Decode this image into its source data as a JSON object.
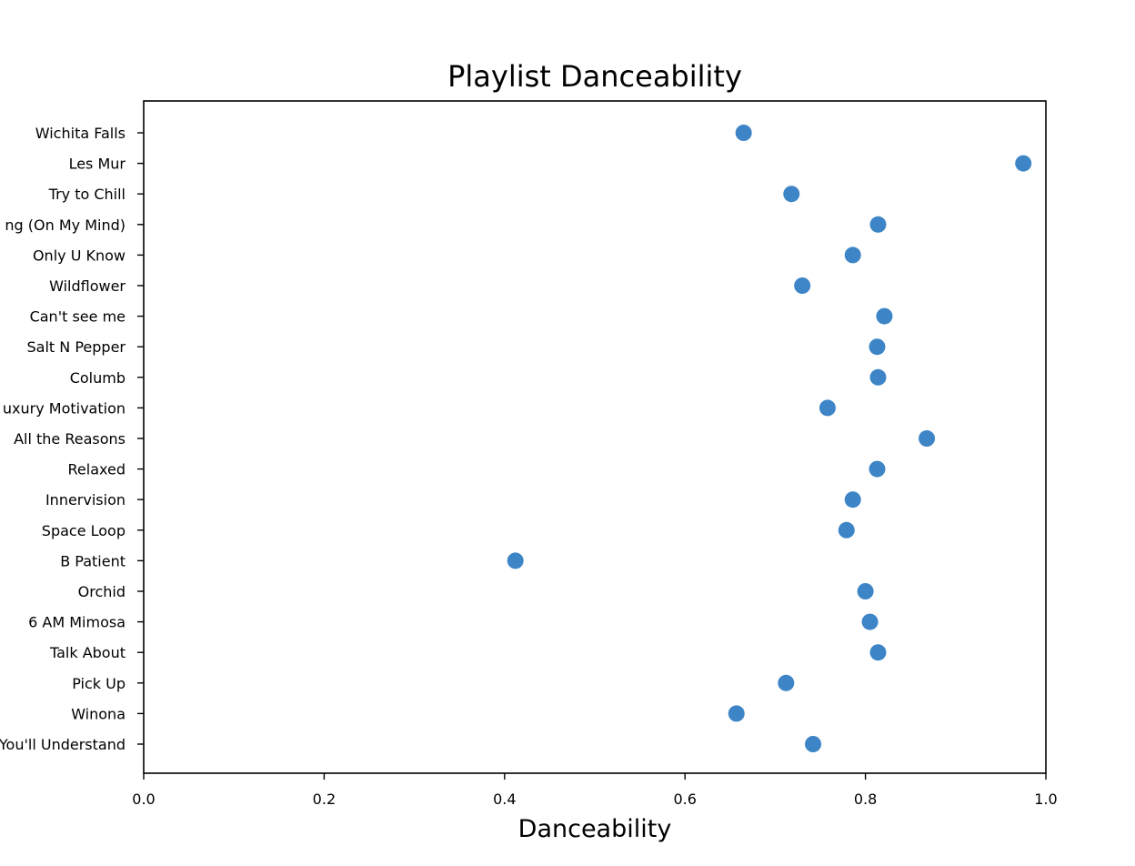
{
  "chart_data": {
    "type": "scatter",
    "title": "Playlist Danceability",
    "xlabel": "Danceability",
    "ylabel": "",
    "xlim": [
      0.0,
      1.0
    ],
    "xticks": [
      "0.0",
      "0.2",
      "0.4",
      "0.6",
      "0.8",
      "1.0"
    ],
    "grid": false,
    "marker_color": "#3d85c6",
    "series": [
      {
        "points": [
          {
            "track": "Wichita Falls",
            "x": 0.665
          },
          {
            "track": "Les Mur",
            "x": 0.975
          },
          {
            "track": "Try to Chill",
            "x": 0.718
          },
          {
            "track": "ng (On My Mind)",
            "x": 0.814
          },
          {
            "track": "Only U Know",
            "x": 0.786
          },
          {
            "track": "Wildflower",
            "x": 0.73
          },
          {
            "track": "Can't see me",
            "x": 0.821
          },
          {
            "track": "Salt N Pepper",
            "x": 0.813
          },
          {
            "track": "Columb",
            "x": 0.814
          },
          {
            "track": "uxury Motivation",
            "x": 0.758
          },
          {
            "track": "All the Reasons",
            "x": 0.868
          },
          {
            "track": "Relaxed",
            "x": 0.813
          },
          {
            "track": "Innervision",
            "x": 0.786
          },
          {
            "track": "Space Loop",
            "x": 0.779
          },
          {
            "track": "B Patient",
            "x": 0.412
          },
          {
            "track": "Orchid",
            "x": 0.8
          },
          {
            "track": "6 AM Mimosa",
            "x": 0.805
          },
          {
            "track": "Talk About",
            "x": 0.814
          },
          {
            "track": "Pick Up",
            "x": 0.712
          },
          {
            "track": "Winona",
            "x": 0.657
          },
          {
            "track": "You'll Understand",
            "x": 0.742
          }
        ]
      }
    ]
  }
}
